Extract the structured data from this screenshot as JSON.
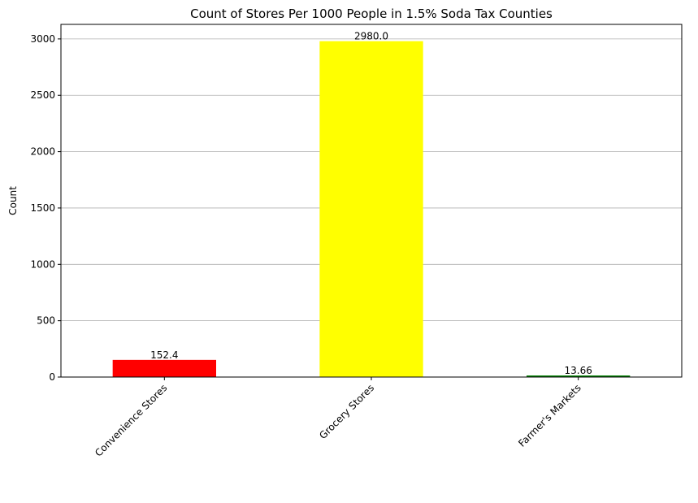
{
  "chart_data": {
    "type": "bar",
    "title": "Count of Stores Per 1000 People in 1.5% Soda Tax Counties",
    "xlabel": "",
    "ylabel": "Count",
    "categories": [
      "Convenience Stores",
      "Grocery Stores",
      "Farmer's Markets"
    ],
    "values": [
      152.4,
      2980.0,
      13.66
    ],
    "data_labels": [
      "152.4",
      "2980.0",
      "13.66"
    ],
    "bar_colors": [
      "#ff0000",
      "#ffff00",
      "#008000"
    ],
    "ylim": [
      0,
      3129
    ],
    "yticks": [
      0,
      500,
      1000,
      1500,
      2000,
      2500,
      3000
    ],
    "grid": "y",
    "legend": "none"
  }
}
